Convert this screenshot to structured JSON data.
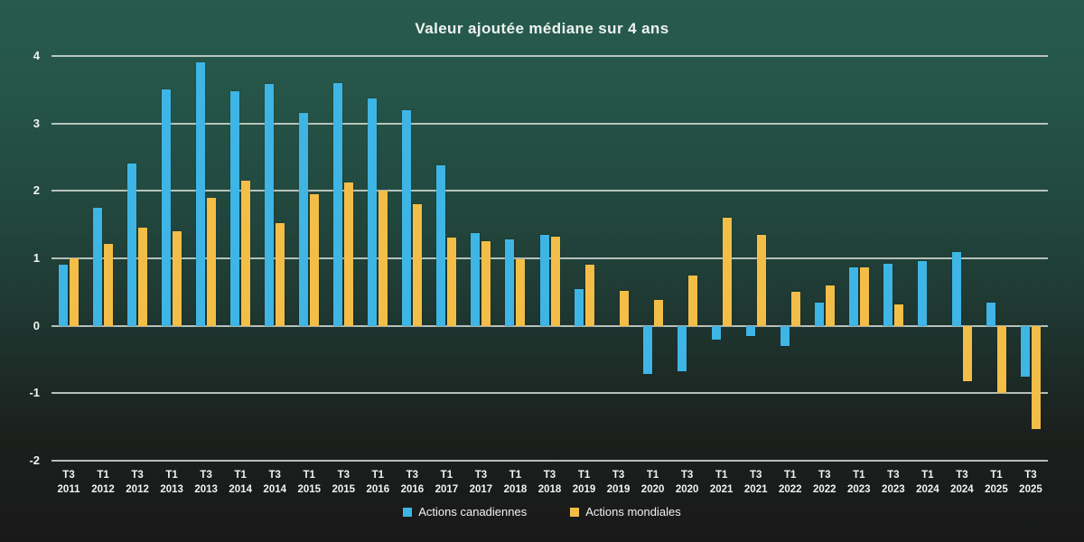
{
  "chart_data": {
    "type": "bar",
    "title": "Valeur ajoutée médiane sur 4 ans",
    "xlabel": "",
    "ylabel": "",
    "ylim": [
      -2,
      4
    ],
    "yticks": [
      4,
      3,
      2,
      1,
      0,
      -1,
      -2
    ],
    "grid": true,
    "legend_position": "bottom",
    "categories": [
      "T3 2011",
      "T1 2012",
      "T3 2012",
      "T1 2013",
      "T3 2013",
      "T1 2014",
      "T3 2014",
      "T1 2015",
      "T3 2015",
      "T1 2016",
      "T3 2016",
      "T1 2017",
      "T3 2017",
      "T1 2018",
      "T3 2018",
      "T1 2019",
      "T3 2019",
      "T1 2020",
      "T3 2020",
      "T1 2021",
      "T3 2021",
      "T1 2022",
      "T3 2022",
      "T1 2023",
      "T3 2023",
      "T1 2024",
      "T3 2024",
      "T1 2025",
      "T3 2025"
    ],
    "series": [
      {
        "name": "Actions canadiennes",
        "color": "#3eb5e5",
        "values": [
          0.9,
          1.75,
          2.4,
          3.5,
          3.9,
          3.48,
          3.58,
          3.15,
          3.6,
          3.37,
          3.2,
          2.38,
          1.37,
          1.28,
          1.35,
          0.55,
          0,
          -0.72,
          -0.67,
          -0.2,
          -0.15,
          -0.3,
          0.35,
          0.87,
          0.92,
          0.96,
          1.1,
          0.35,
          -0.75
        ]
      },
      {
        "name": "Actions mondiales",
        "color": "#f3be48",
        "values": [
          1.0,
          1.22,
          1.45,
          1.4,
          1.9,
          2.15,
          1.52,
          1.95,
          2.12,
          2.0,
          1.8,
          1.31,
          1.26,
          0.98,
          1.32,
          0.9,
          0.52,
          0.38,
          0.75,
          1.6,
          1.35,
          0.5,
          0.6,
          0.87,
          0.32,
          0,
          -0.82,
          -1.0,
          -1.53
        ]
      }
    ]
  }
}
